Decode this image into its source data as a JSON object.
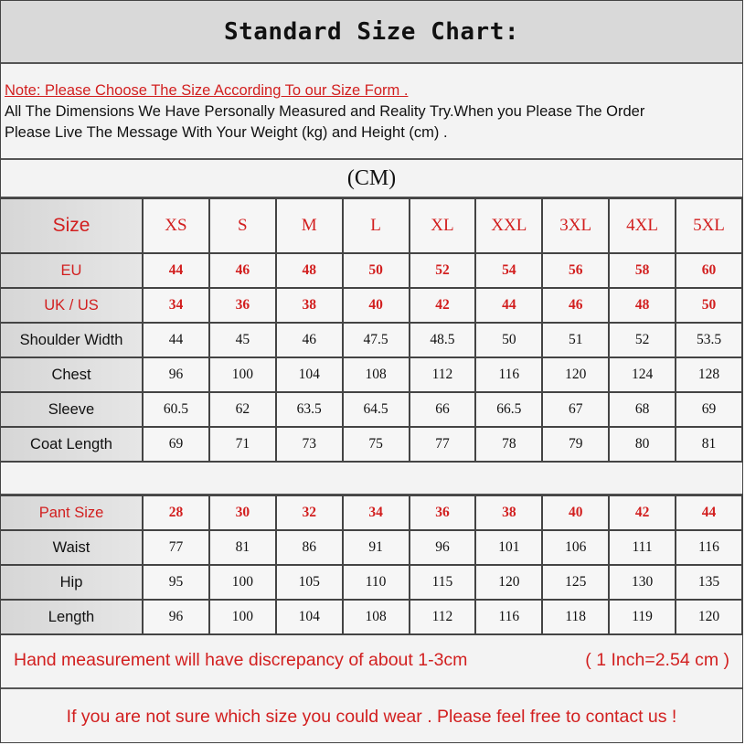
{
  "title": "Standard Size Chart:",
  "note": {
    "red_line": "Note: Please Choose The Size According To our Size Form .",
    "line1": "All The Dimensions We Have Personally Measured and Reality Try.When you Please The Order",
    "line2": "Please Live The Message With Your Weight (kg) and Height (cm) ."
  },
  "unit": "(CM)",
  "colors": {
    "red": "#d21f1f",
    "label_bg": "#d9d9d9"
  },
  "coat_table": {
    "header": {
      "label": "Size",
      "values": [
        "XS",
        "S",
        "M",
        "L",
        "XL",
        "XXL",
        "3XL",
        "4XL",
        "5XL"
      ]
    },
    "rows": [
      {
        "label": "EU",
        "red": true,
        "values": [
          "44",
          "46",
          "48",
          "50",
          "52",
          "54",
          "56",
          "58",
          "60"
        ]
      },
      {
        "label": "UK / US",
        "red": true,
        "values": [
          "34",
          "36",
          "38",
          "40",
          "42",
          "44",
          "46",
          "48",
          "50"
        ]
      },
      {
        "label": "Shoulder Width",
        "red": false,
        "values": [
          "44",
          "45",
          "46",
          "47.5",
          "48.5",
          "50",
          "51",
          "52",
          "53.5"
        ]
      },
      {
        "label": "Chest",
        "red": false,
        "values": [
          "96",
          "100",
          "104",
          "108",
          "112",
          "116",
          "120",
          "124",
          "128"
        ]
      },
      {
        "label": "Sleeve",
        "red": false,
        "values": [
          "60.5",
          "62",
          "63.5",
          "64.5",
          "66",
          "66.5",
          "67",
          "68",
          "69"
        ]
      },
      {
        "label": "Coat Length",
        "red": false,
        "values": [
          "69",
          "71",
          "73",
          "75",
          "77",
          "78",
          "79",
          "80",
          "81"
        ]
      }
    ]
  },
  "pant_table": {
    "rows": [
      {
        "label": "Pant Size",
        "red": true,
        "values": [
          "28",
          "30",
          "32",
          "34",
          "36",
          "38",
          "40",
          "42",
          "44"
        ]
      },
      {
        "label": "Waist",
        "red": false,
        "values": [
          "77",
          "81",
          "86",
          "91",
          "96",
          "101",
          "106",
          "111",
          "116"
        ]
      },
      {
        "label": "Hip",
        "red": false,
        "values": [
          "95",
          "100",
          "105",
          "110",
          "115",
          "120",
          "125",
          "130",
          "135"
        ]
      },
      {
        "label": "Length",
        "red": false,
        "values": [
          "96",
          "100",
          "104",
          "108",
          "112",
          "116",
          "118",
          "119",
          "120"
        ]
      }
    ]
  },
  "footer": {
    "discrepancy": "Hand measurement will have discrepancy of about 1-3cm",
    "conversion": "( 1 Inch=2.54 cm )",
    "contact": "If you are not sure which size you could wear . Please feel free to contact us !"
  }
}
